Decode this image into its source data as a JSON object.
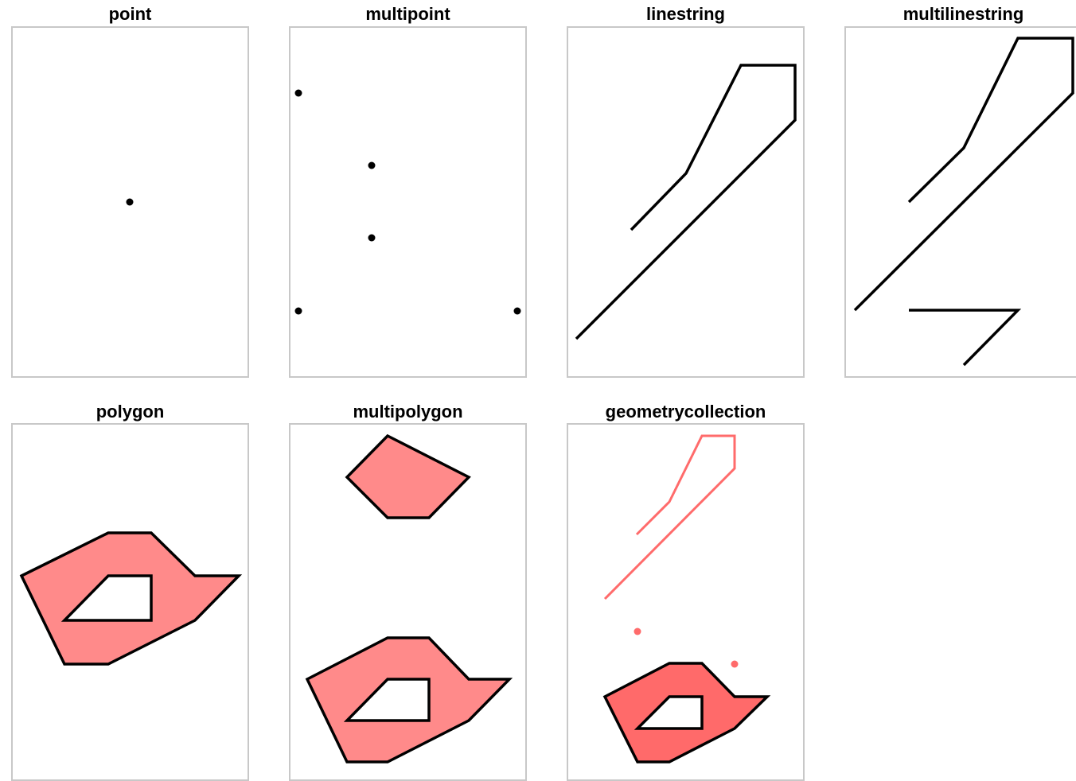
{
  "panels": [
    {
      "title": "point"
    },
    {
      "title": "multipoint"
    },
    {
      "title": "linestring"
    },
    {
      "title": "multilinestring"
    },
    {
      "title": "polygon"
    },
    {
      "title": "multipolygon"
    },
    {
      "title": "geometrycollection"
    }
  ],
  "colors": {
    "stroke": "#000000",
    "polygon_fill": "#ff8a8a",
    "collection_fill": "#ff6a6a",
    "collection_line": "#ff6b6b",
    "frame": "#c8c8c8"
  }
}
